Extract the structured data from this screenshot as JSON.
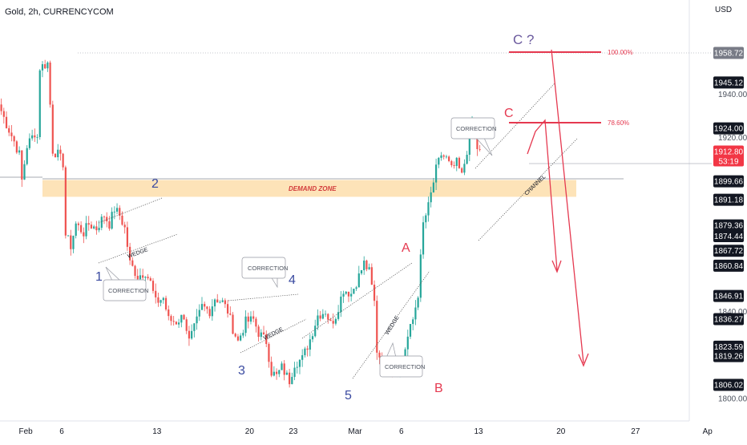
{
  "chart_data": {
    "type": "candlestick",
    "title": "Gold, 2h, CURRENCYCOM",
    "currency": "USD",
    "colors": {
      "up": "#26a69a",
      "down": "#ef5350",
      "annotation_red": "#e53950",
      "wave_blue": "#3a4aa0",
      "zone": "#fde3b8",
      "current_price_bg": "#f23645",
      "label_bg": "#131722"
    },
    "x_labels": [
      {
        "label": "Feb",
        "bar": 10
      },
      {
        "label": "6",
        "bar": 24
      },
      {
        "label": "13",
        "bar": 61
      },
      {
        "label": "20",
        "bar": 97
      },
      {
        "label": "23",
        "bar": 114
      },
      {
        "label": "Mar",
        "bar": 138
      },
      {
        "label": "6",
        "bar": 156
      },
      {
        "label": "13",
        "bar": 186
      },
      {
        "label": "20",
        "bar": 218
      },
      {
        "label": "27",
        "bar": 247
      },
      {
        "label": "Ap",
        "bar": 275
      }
    ],
    "y_axis": {
      "range": [
        1795,
        1970
      ],
      "plain_ticks": [
        "1940.00",
        "1920.00",
        "1840.00",
        "1800.00"
      ],
      "labels": [
        {
          "value": 1958.72,
          "text": "1958.72",
          "style": "gray"
        },
        {
          "value": 1945.12,
          "text": "1945.12",
          "style": "dark"
        },
        {
          "value": 1924.0,
          "text": "1924.00",
          "style": "dark"
        },
        {
          "value": 1912.8,
          "text": "1912.80",
          "sub": "53:19",
          "style": "current"
        },
        {
          "value": 1899.66,
          "text": "1899.66",
          "style": "dark"
        },
        {
          "value": 1891.18,
          "text": "1891.18",
          "style": "dark"
        },
        {
          "value": 1879.36,
          "text": "1879.36",
          "style": "dark"
        },
        {
          "value": 1874.44,
          "text": "1874.44",
          "style": "dark"
        },
        {
          "value": 1867.72,
          "text": "1867.72",
          "style": "dark"
        },
        {
          "value": 1860.84,
          "text": "1860.84",
          "style": "dark"
        },
        {
          "value": 1846.91,
          "text": "1846.91",
          "style": "dark"
        },
        {
          "value": 1836.27,
          "text": "1836.27",
          "style": "dark"
        },
        {
          "value": 1823.59,
          "text": "1823.59",
          "style": "dark"
        },
        {
          "value": 1819.26,
          "text": "1819.26",
          "style": "dark"
        },
        {
          "value": 1806.02,
          "text": "1806.02",
          "style": "dark"
        }
      ]
    },
    "price_path": [
      [
        0,
        1935
      ],
      [
        3,
        1926
      ],
      [
        6,
        1918
      ],
      [
        8,
        1912
      ],
      [
        9,
        1900
      ],
      [
        11,
        1916
      ],
      [
        14,
        1922
      ],
      [
        15,
        1920
      ],
      [
        16,
        1952
      ],
      [
        19,
        1954
      ],
      [
        20,
        1935
      ],
      [
        21,
        1914
      ],
      [
        23,
        1912
      ],
      [
        25,
        1908
      ],
      [
        26,
        1875
      ],
      [
        28,
        1870
      ],
      [
        30,
        1880
      ],
      [
        33,
        1876
      ],
      [
        35,
        1880
      ],
      [
        38,
        1878
      ],
      [
        41,
        1884
      ],
      [
        43,
        1880
      ],
      [
        45,
        1887
      ],
      [
        47,
        1884
      ],
      [
        49,
        1878
      ],
      [
        51,
        1862
      ],
      [
        54,
        1856
      ],
      [
        57,
        1858
      ],
      [
        59,
        1853
      ],
      [
        61,
        1844
      ],
      [
        64,
        1846
      ],
      [
        66,
        1836
      ],
      [
        69,
        1835
      ],
      [
        72,
        1838
      ],
      [
        74,
        1826
      ],
      [
        76,
        1832
      ],
      [
        79,
        1842
      ],
      [
        82,
        1840
      ],
      [
        84,
        1846
      ],
      [
        87,
        1844
      ],
      [
        89,
        1840
      ],
      [
        91,
        1832
      ],
      [
        93,
        1826
      ],
      [
        96,
        1835
      ],
      [
        99,
        1836
      ],
      [
        101,
        1830
      ],
      [
        104,
        1826
      ],
      [
        106,
        1812
      ],
      [
        108,
        1810
      ],
      [
        110,
        1814
      ],
      [
        113,
        1808
      ],
      [
        115,
        1816
      ],
      [
        118,
        1818
      ],
      [
        121,
        1827
      ],
      [
        124,
        1838
      ],
      [
        127,
        1840
      ],
      [
        129,
        1834
      ],
      [
        131,
        1838
      ],
      [
        134,
        1850
      ],
      [
        137,
        1848
      ],
      [
        140,
        1856
      ],
      [
        142,
        1862
      ],
      [
        144,
        1858
      ],
      [
        146,
        1844
      ],
      [
        147,
        1822
      ],
      [
        150,
        1814
      ],
      [
        152,
        1816
      ],
      [
        154,
        1813
      ],
      [
        157,
        1818
      ],
      [
        159,
        1828
      ],
      [
        161,
        1836
      ],
      [
        163,
        1848
      ],
      [
        165,
        1880
      ],
      [
        167,
        1888
      ],
      [
        170,
        1905
      ],
      [
        172,
        1912
      ],
      [
        174,
        1910
      ],
      [
        176,
        1905
      ],
      [
        178,
        1908
      ],
      [
        180,
        1902
      ],
      [
        182,
        1914
      ],
      [
        184,
        1926
      ],
      [
        186,
        1915
      ],
      [
        187,
        1913
      ]
    ],
    "demand_zone": {
      "label": "DEMAND ZONE",
      "y_top": 1901,
      "y_bottom": 1894
    },
    "fib_levels": [
      {
        "label": "100.00%",
        "value": 1958.72
      },
      {
        "label": "78.60%",
        "value": 1924.0
      }
    ],
    "wave_labels": [
      "1",
      "2",
      "3",
      "4",
      "5",
      "A",
      "B",
      "C",
      "C ?"
    ],
    "pattern_labels": [
      "WEDGE",
      "WEDGE",
      "WEDGE",
      "CHANNEL"
    ],
    "callouts": [
      "CORRECTION",
      "CORRECTION",
      "CORRECTION",
      "CORRECTION"
    ]
  }
}
